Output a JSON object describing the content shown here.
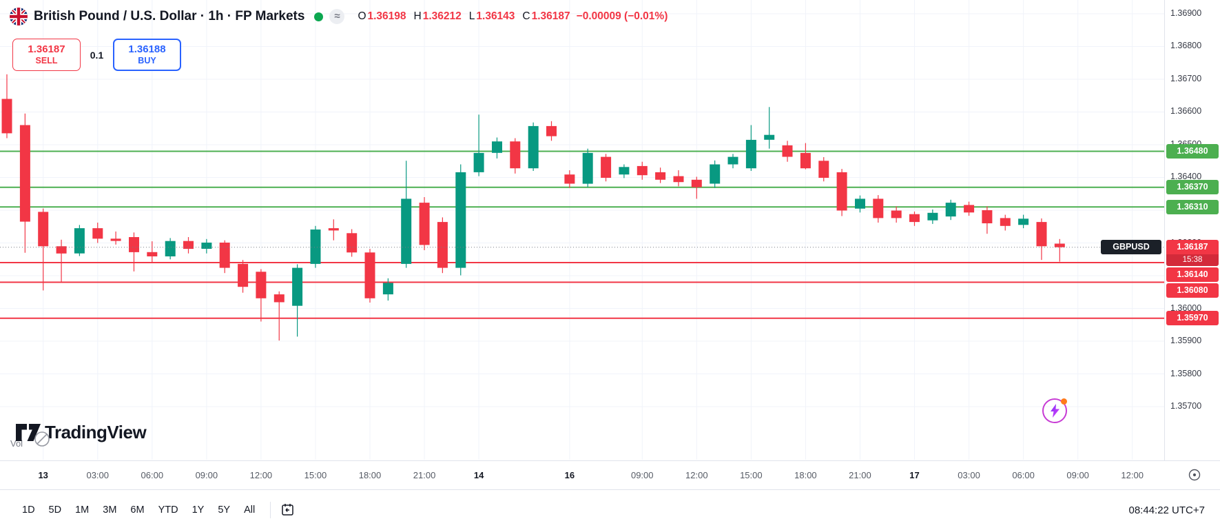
{
  "header": {
    "symbol_title": "British Pound / U.S. Dollar · 1h · FP Markets",
    "flag_icon": "uk-flag-icon",
    "market_status_icon": "market-open-dot",
    "delayed_icon_glyph": "≈",
    "ohlc": {
      "o_label": "O",
      "o": "1.36198",
      "h_label": "H",
      "h": "1.36212",
      "l_label": "L",
      "l": "1.36143",
      "c_label": "C",
      "c": "1.36187",
      "change": "−0.00009 (−0.01%)"
    }
  },
  "trade_panel": {
    "sell_price": "1.36187",
    "sell_label": "SELL",
    "quantity": "0.1",
    "buy_price": "1.36188",
    "buy_label": "BUY",
    "sell_color": "#F23645",
    "buy_color": "#2962FF"
  },
  "chart_data": {
    "type": "candlestick",
    "symbol": "GBPUSD",
    "interval": "1h",
    "ylim": [
      1.35538,
      1.36942
    ],
    "price_ticks": [
      1.369,
      1.368,
      1.367,
      1.366,
      1.365,
      1.364,
      1.363,
      1.362,
      1.361,
      1.36,
      1.359,
      1.358,
      1.357
    ],
    "time_ticks": [
      {
        "label": "13",
        "i": 2,
        "day": true
      },
      {
        "label": "03:00",
        "i": 5
      },
      {
        "label": "06:00",
        "i": 8
      },
      {
        "label": "09:00",
        "i": 11
      },
      {
        "label": "12:00",
        "i": 14
      },
      {
        "label": "15:00",
        "i": 17
      },
      {
        "label": "18:00",
        "i": 20
      },
      {
        "label": "21:00",
        "i": 23
      },
      {
        "label": "14",
        "i": 26,
        "day": true
      },
      {
        "label": "16",
        "i": 31,
        "day": true
      },
      {
        "label": "09:00",
        "i": 35
      },
      {
        "label": "12:00",
        "i": 38
      },
      {
        "label": "15:00",
        "i": 41
      },
      {
        "label": "18:00",
        "i": 44
      },
      {
        "label": "21:00",
        "i": 47
      },
      {
        "label": "17",
        "i": 50,
        "day": true
      },
      {
        "label": "03:00",
        "i": 53
      },
      {
        "label": "06:00",
        "i": 56
      },
      {
        "label": "09:00",
        "i": 59
      },
      {
        "label": "12:00",
        "i": 62
      }
    ],
    "levels": [
      {
        "price": 1.3648,
        "role": "resistance",
        "color": "#4CAF50"
      },
      {
        "price": 1.3637,
        "role": "resistance",
        "color": "#4CAF50"
      },
      {
        "price": 1.3631,
        "role": "resistance",
        "color": "#4CAF50"
      },
      {
        "price": 1.3614,
        "role": "support",
        "color": "#F23645"
      },
      {
        "price": 1.3608,
        "role": "support",
        "color": "#F23645"
      },
      {
        "price": 1.3597,
        "role": "support",
        "color": "#F23645"
      }
    ],
    "current_price": {
      "tag": "GBPUSD",
      "value": 1.36187,
      "countdown": "15:38"
    },
    "colors": {
      "up": "#089981",
      "down": "#F23645",
      "grid": "#F0F3FA",
      "level_up": "#4CAF50",
      "level_down": "#F23645"
    },
    "candles": [
      [
        1.3664,
        1.36715,
        1.3652,
        1.36535
      ],
      [
        1.3656,
        1.36595,
        1.3617,
        1.36265
      ],
      [
        1.36295,
        1.36305,
        1.36055,
        1.3619
      ],
      [
        1.3619,
        1.3621,
        1.36082,
        1.36168
      ],
      [
        1.36168,
        1.36255,
        1.3616,
        1.36245
      ],
      [
        1.36245,
        1.36262,
        1.362,
        1.36213
      ],
      [
        1.36213,
        1.36235,
        1.36195,
        1.36206
      ],
      [
        1.36218,
        1.36232,
        1.36113,
        1.36172
      ],
      [
        1.36172,
        1.36205,
        1.3614,
        1.36159
      ],
      [
        1.36159,
        1.36215,
        1.3615,
        1.36206
      ],
      [
        1.36206,
        1.36218,
        1.36168,
        1.36182
      ],
      [
        1.36182,
        1.36212,
        1.36168,
        1.36201
      ],
      [
        1.36201,
        1.36208,
        1.36108,
        1.36124
      ],
      [
        1.36136,
        1.36148,
        1.36048,
        1.36066
      ],
      [
        1.36112,
        1.3612,
        1.3596,
        1.36031
      ],
      [
        1.36043,
        1.36052,
        1.35902,
        1.36019
      ],
      [
        1.36008,
        1.36135,
        1.35914,
        1.36124
      ],
      [
        1.36136,
        1.36252,
        1.36124,
        1.36241
      ],
      [
        1.36245,
        1.36272,
        1.36208,
        1.36238
      ],
      [
        1.3623,
        1.36242,
        1.36158,
        1.36171
      ],
      [
        1.36171,
        1.36182,
        1.36018,
        1.36031
      ],
      [
        1.36043,
        1.36092,
        1.36024,
        1.36078
      ],
      [
        1.36136,
        1.36451,
        1.36124,
        1.36335
      ],
      [
        1.36323,
        1.3634,
        1.36178,
        1.36194
      ],
      [
        1.36264,
        1.36278,
        1.36108,
        1.36124
      ],
      [
        1.36124,
        1.3644,
        1.36101,
        1.36416
      ],
      [
        1.36416,
        1.36592,
        1.36404,
        1.36475
      ],
      [
        1.36475,
        1.36522,
        1.36458,
        1.3651
      ],
      [
        1.3651,
        1.3652,
        1.36412,
        1.36428
      ],
      [
        1.36428,
        1.36568,
        1.3642,
        1.36557
      ],
      [
        1.36557,
        1.36572,
        1.36512,
        1.36526
      ],
      [
        1.36409,
        1.36422,
        1.36368,
        1.36381
      ],
      [
        1.36381,
        1.36488,
        1.3637,
        1.36475
      ],
      [
        1.36463,
        1.36472,
        1.36388,
        1.36399
      ],
      [
        1.36409,
        1.3644,
        1.36398,
        1.36432
      ],
      [
        1.36435,
        1.36448,
        1.36393,
        1.36407
      ],
      [
        1.36416,
        1.3643,
        1.36383,
        1.36393
      ],
      [
        1.36404,
        1.36422,
        1.36373,
        1.36386
      ],
      [
        1.36393,
        1.36402,
        1.36335,
        1.3637
      ],
      [
        1.36381,
        1.36452,
        1.36368,
        1.3644
      ],
      [
        1.3644,
        1.36472,
        1.36428,
        1.36463
      ],
      [
        1.36428,
        1.3656,
        1.3642,
        1.36515
      ],
      [
        1.36515,
        1.36615,
        1.36488,
        1.3653
      ],
      [
        1.36498,
        1.36512,
        1.36448,
        1.36463
      ],
      [
        1.36475,
        1.36505,
        1.36425,
        1.36428
      ],
      [
        1.36451,
        1.36462,
        1.36388,
        1.36399
      ],
      [
        1.36416,
        1.36426,
        1.36282,
        1.36299
      ],
      [
        1.36305,
        1.36345,
        1.36293,
        1.36335
      ],
      [
        1.36335,
        1.36346,
        1.36262,
        1.36276
      ],
      [
        1.36299,
        1.36312,
        1.36262,
        1.36276
      ],
      [
        1.36288,
        1.36296,
        1.36252,
        1.36264
      ],
      [
        1.36269,
        1.36302,
        1.36258,
        1.36292
      ],
      [
        1.36281,
        1.36332,
        1.3627,
        1.36323
      ],
      [
        1.36316,
        1.36326,
        1.36283,
        1.36293
      ],
      [
        1.363,
        1.36312,
        1.36228,
        1.3626
      ],
      [
        1.36276,
        1.36286,
        1.36238,
        1.36252
      ],
      [
        1.36255,
        1.36286,
        1.36245,
        1.36274
      ],
      [
        1.36264,
        1.36275,
        1.36148,
        1.3619
      ],
      [
        1.36198,
        1.36212,
        1.36143,
        1.36187
      ]
    ]
  },
  "watermark": {
    "vol_label": "Vol",
    "logo_text": "TradingView"
  },
  "overlay": {
    "flash_icon": "flash-boost-icon"
  },
  "toolbar": {
    "ranges": [
      "1D",
      "5D",
      "1M",
      "3M",
      "6M",
      "YTD",
      "1Y",
      "5Y",
      "All"
    ],
    "go_to_date_icon": "calendar-icon",
    "clock": "08:44:22 UTC+7"
  },
  "time_axis": {
    "realtime_icon": "go-to-realtime-icon"
  }
}
